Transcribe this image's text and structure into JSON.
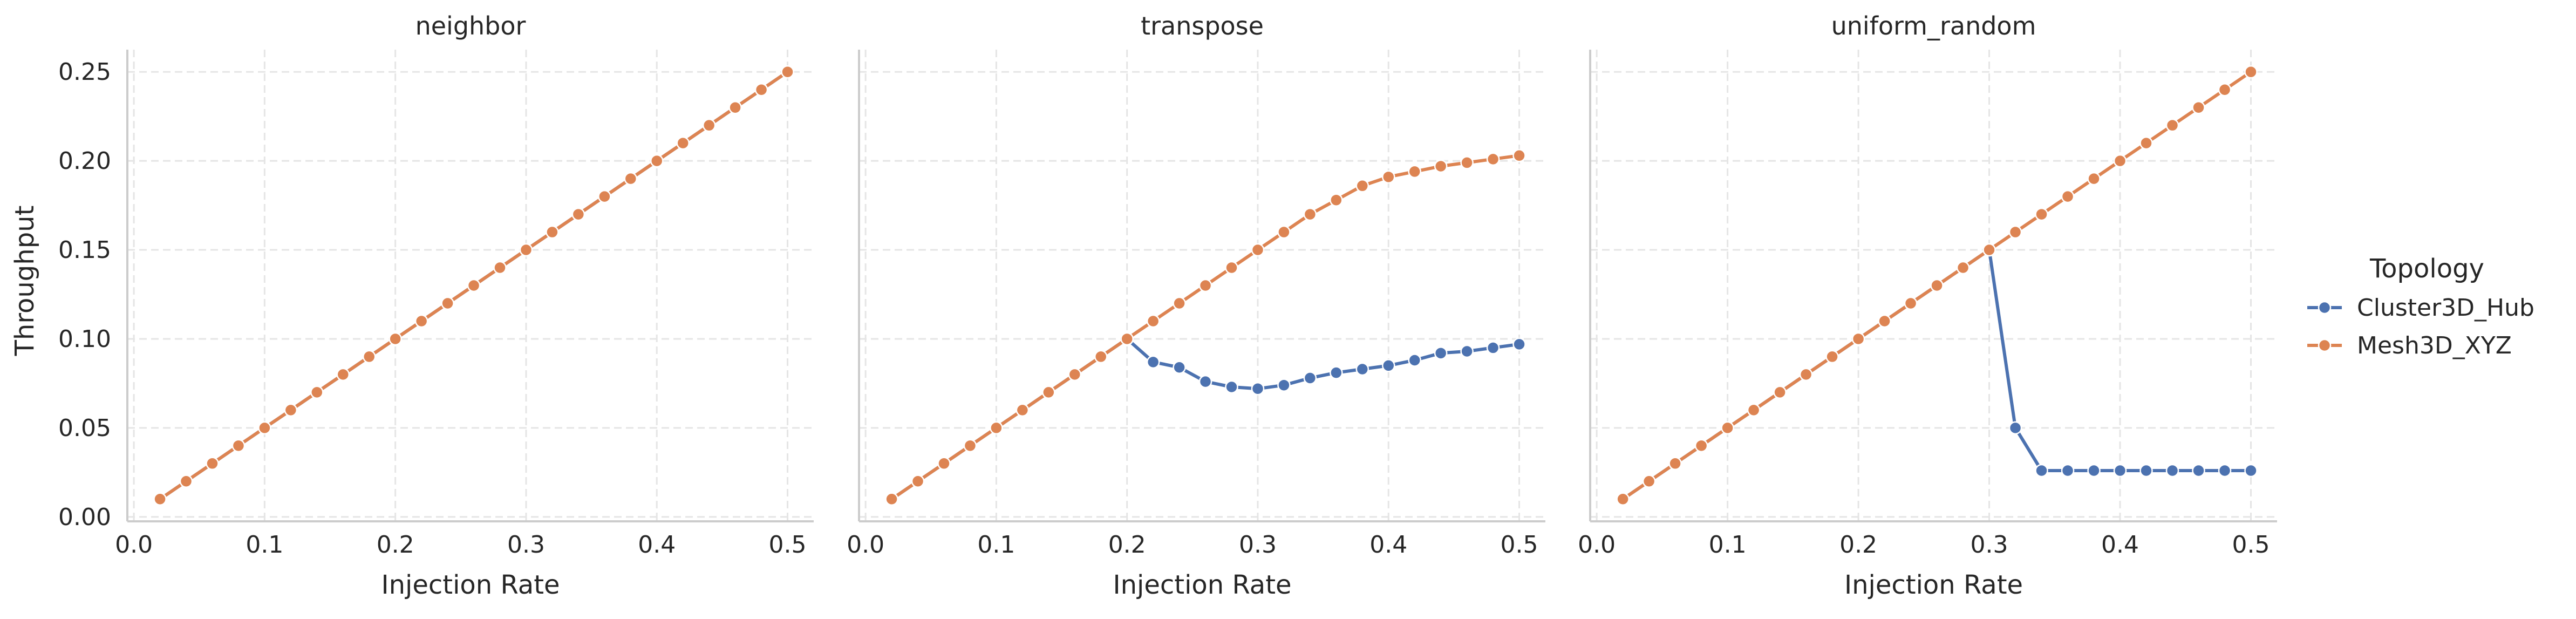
{
  "chart_data": {
    "type": "line",
    "xlabel": "Injection Rate",
    "ylabel": "Throughput",
    "xlim": [
      -0.005,
      0.52
    ],
    "ylim": [
      -0.0025,
      0.2625
    ],
    "xticks": [
      0.0,
      0.1,
      0.2,
      0.3,
      0.4,
      0.5
    ],
    "xtick_labels": [
      "0.0",
      "0.1",
      "0.2",
      "0.3",
      "0.4",
      "0.5"
    ],
    "yticks": [
      0.0,
      0.05,
      0.1,
      0.15,
      0.2,
      0.25
    ],
    "ytick_labels": [
      "0.00",
      "0.05",
      "0.10",
      "0.15",
      "0.20",
      "0.25"
    ],
    "grid": true,
    "markers": true,
    "legend": {
      "title": "Topology",
      "placement": "right",
      "entries": [
        "Cluster3D_Hub",
        "Mesh3D_XYZ"
      ]
    },
    "series_colors": {
      "Cluster3D_Hub": "#4c72b0",
      "Mesh3D_XYZ": "#dd8452"
    },
    "x": [
      0.02,
      0.04,
      0.06,
      0.08,
      0.1,
      0.12,
      0.14,
      0.16,
      0.18,
      0.2,
      0.22,
      0.24,
      0.26,
      0.28,
      0.3,
      0.32,
      0.34,
      0.36,
      0.38,
      0.4,
      0.42,
      0.44,
      0.46,
      0.48,
      0.5
    ],
    "panels": [
      {
        "title": "neighbor",
        "series": [
          {
            "name": "Cluster3D_Hub",
            "values": [
              0.01,
              0.02,
              0.03,
              0.04,
              0.05,
              0.06,
              0.07,
              0.08,
              0.09,
              0.1,
              0.11,
              0.12,
              0.13,
              0.14,
              0.15,
              0.16,
              0.17,
              0.18,
              0.19,
              0.2,
              0.21,
              0.22,
              0.23,
              0.24,
              0.25
            ]
          },
          {
            "name": "Mesh3D_XYZ",
            "values": [
              0.01,
              0.02,
              0.03,
              0.04,
              0.05,
              0.06,
              0.07,
              0.08,
              0.09,
              0.1,
              0.11,
              0.12,
              0.13,
              0.14,
              0.15,
              0.16,
              0.17,
              0.18,
              0.19,
              0.2,
              0.21,
              0.22,
              0.23,
              0.24,
              0.25
            ]
          }
        ]
      },
      {
        "title": "transpose",
        "series": [
          {
            "name": "Cluster3D_Hub",
            "values": [
              0.01,
              0.02,
              0.03,
              0.04,
              0.05,
              0.06,
              0.07,
              0.08,
              0.09,
              0.1,
              0.087,
              0.084,
              0.076,
              0.073,
              0.072,
              0.074,
              0.078,
              0.081,
              0.083,
              0.085,
              0.088,
              0.092,
              0.093,
              0.095,
              0.097
            ]
          },
          {
            "name": "Mesh3D_XYZ",
            "values": [
              0.01,
              0.02,
              0.03,
              0.04,
              0.05,
              0.06,
              0.07,
              0.08,
              0.09,
              0.1,
              0.11,
              0.12,
              0.13,
              0.14,
              0.15,
              0.16,
              0.17,
              0.178,
              0.186,
              0.191,
              0.194,
              0.197,
              0.199,
              0.201,
              0.203
            ]
          }
        ]
      },
      {
        "title": "uniform_random",
        "series": [
          {
            "name": "Cluster3D_Hub",
            "values": [
              0.01,
              0.02,
              0.03,
              0.04,
              0.05,
              0.06,
              0.07,
              0.08,
              0.09,
              0.1,
              0.11,
              0.12,
              0.13,
              0.14,
              0.15,
              0.05,
              0.026,
              0.026,
              0.026,
              0.026,
              0.026,
              0.026,
              0.026,
              0.026,
              0.026
            ]
          },
          {
            "name": "Mesh3D_XYZ",
            "values": [
              0.01,
              0.02,
              0.03,
              0.04,
              0.05,
              0.06,
              0.07,
              0.08,
              0.09,
              0.1,
              0.11,
              0.12,
              0.13,
              0.14,
              0.15,
              0.16,
              0.17,
              0.18,
              0.19,
              0.2,
              0.21,
              0.22,
              0.23,
              0.24,
              0.25
            ]
          }
        ]
      }
    ]
  }
}
